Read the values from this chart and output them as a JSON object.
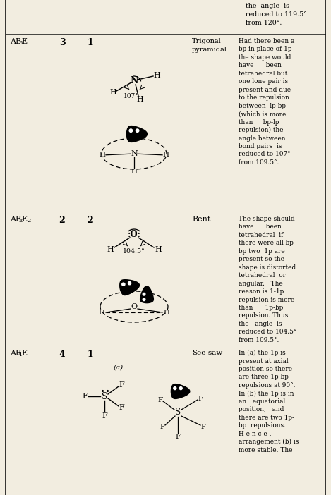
{
  "bg_color": "#f2ede0",
  "top_text": "the  angle  is\nreduced to 119.5°\nfrom 120°.",
  "row1_label": [
    "AB",
    "3",
    "E"
  ],
  "row1_bp": "3",
  "row1_lp": "1",
  "row1_shape": [
    "Trigonal",
    "pyramidal"
  ],
  "row1_desc": "Had there been a\nbp in place of 1p\nthe shape would\nhave      been\ntetrahedral but\none lone pair is\npresent and due\nto the repulsion\nbetween  lp-bp\n(which is more\nthan     bp-lp\nrepulsion) the\nangle between\nbond pairs  is\nreduced to 107°\nfrom 109.5°.",
  "row2_label": [
    "AB",
    "2",
    "E",
    "2"
  ],
  "row2_bp": "2",
  "row2_lp": "2",
  "row2_shape": "Bent",
  "row2_desc": "The shape should\nhave      been\ntetrahedral  if\nthere were all bp\nbp two  1p are\npresent so the\nshape is distorted\ntetrahedral  or\nangular.   The\nreason is 1-1p\nrepulsion is more\nthan      1p-bp\nrepulsion. Thus\nthe   angle  is\nreduced to 104.5°\nfrom 109.5°.",
  "row3_label": [
    "AB",
    "4",
    "E"
  ],
  "row3_bp": "4",
  "row3_lp": "1",
  "row3_shape": "See-saw",
  "row3_desc": "In (a) the 1p is\npresent at axial\nposition so there\nare three 1p-bp\nrepulsions at 90°.\nIn (b) the 1p is in\nan   equatorial\nposition,   and\nthere are two 1p-\nbp  repulsions.\nH e n c e ,\narrangement (b) is\nmore stable. The",
  "serif": "DejaVu Serif"
}
